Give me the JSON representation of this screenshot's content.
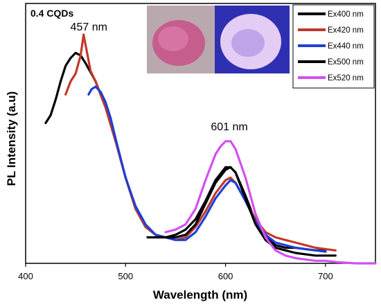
{
  "chart_data": {
    "type": "line",
    "title": "",
    "xlabel": "Wavelength (nm)",
    "ylabel": "PL Intensity (a.u)",
    "xlim": [
      400,
      750
    ],
    "ylim": [
      0,
      1
    ],
    "xticks": [
      400,
      500,
      600,
      700
    ],
    "yticks_shown": false,
    "grid": false,
    "legend_position": "top-right",
    "annotations": [
      {
        "text": "0.4 CQDs"
      },
      {
        "text": "457 nm",
        "x": 457
      },
      {
        "text": "601 nm",
        "x": 601
      }
    ],
    "inset": [
      "sample photo under daylight (pink)",
      "sample photo under UV (violet-blue)"
    ],
    "series": [
      {
        "name": "Ex400 nm",
        "color": "#000000",
        "x": [
          420,
          425,
          430,
          435,
          440,
          445,
          450,
          455,
          460,
          470,
          480,
          490,
          500,
          510,
          520,
          530,
          540,
          550,
          560,
          570,
          580,
          590,
          600,
          605,
          610,
          620,
          630,
          640,
          650,
          660,
          670,
          680,
          690,
          700
        ],
        "y": [
          0.54,
          0.57,
          0.63,
          0.7,
          0.76,
          0.79,
          0.81,
          0.8,
          0.77,
          0.7,
          0.6,
          0.47,
          0.33,
          0.21,
          0.14,
          0.11,
          0.1,
          0.11,
          0.13,
          0.17,
          0.24,
          0.32,
          0.37,
          0.37,
          0.35,
          0.26,
          0.16,
          0.1,
          0.07,
          0.06,
          0.06,
          0.055,
          0.05,
          0.05
        ]
      },
      {
        "name": "Ex420 nm",
        "color": "#c0392b",
        "x": [
          440,
          445,
          450,
          455,
          458,
          461,
          465,
          470,
          480,
          490,
          500,
          510,
          520,
          530,
          540,
          550,
          560,
          570,
          580,
          590,
          600,
          605,
          610,
          620,
          630,
          640,
          650,
          660,
          670,
          680,
          690,
          700,
          710
        ],
        "y": [
          0.65,
          0.7,
          0.73,
          0.8,
          0.88,
          0.82,
          0.74,
          0.7,
          0.6,
          0.47,
          0.33,
          0.21,
          0.14,
          0.11,
          0.1,
          0.09,
          0.1,
          0.14,
          0.2,
          0.27,
          0.32,
          0.33,
          0.31,
          0.24,
          0.17,
          0.12,
          0.1,
          0.09,
          0.08,
          0.07,
          0.06,
          0.055,
          0.05
        ]
      },
      {
        "name": "Ex440 nm",
        "color": "#1f3fd6",
        "x": [
          463,
          466,
          470,
          475,
          480,
          485,
          490,
          500,
          510,
          520,
          530,
          540,
          550,
          560,
          570,
          580,
          590,
          600,
          605,
          610,
          620,
          630,
          640,
          650,
          660,
          670,
          680,
          690,
          700
        ],
        "y": [
          0.65,
          0.67,
          0.68,
          0.66,
          0.62,
          0.56,
          0.48,
          0.33,
          0.22,
          0.15,
          0.11,
          0.1,
          0.09,
          0.09,
          0.12,
          0.18,
          0.25,
          0.3,
          0.32,
          0.31,
          0.24,
          0.16,
          0.11,
          0.08,
          0.07,
          0.06,
          0.055,
          0.05,
          0.045
        ]
      },
      {
        "name": "Ex500 nm",
        "color": "#000000",
        "x": [
          522,
          530,
          540,
          550,
          560,
          570,
          580,
          590,
          600,
          605,
          610,
          620,
          630,
          640,
          650,
          660,
          670,
          680,
          690,
          700,
          710
        ],
        "y": [
          0.1,
          0.1,
          0.1,
          0.1,
          0.11,
          0.15,
          0.23,
          0.31,
          0.36,
          0.37,
          0.35,
          0.25,
          0.15,
          0.09,
          0.06,
          0.05,
          0.04,
          0.035,
          0.03,
          0.03,
          0.03
        ]
      },
      {
        "name": "Ex520 nm",
        "color": "#d34ff0",
        "x": [
          540,
          550,
          560,
          570,
          580,
          590,
          595,
          600,
          605,
          610,
          620,
          630,
          640,
          650,
          660,
          670,
          680,
          690,
          700,
          710,
          730,
          750
        ],
        "y": [
          0.12,
          0.13,
          0.15,
          0.21,
          0.32,
          0.42,
          0.45,
          0.47,
          0.47,
          0.44,
          0.33,
          0.19,
          0.1,
          0.05,
          0.03,
          0.02,
          0.015,
          0.01,
          0.01,
          0.005,
          0.0,
          0.0
        ]
      }
    ]
  }
}
